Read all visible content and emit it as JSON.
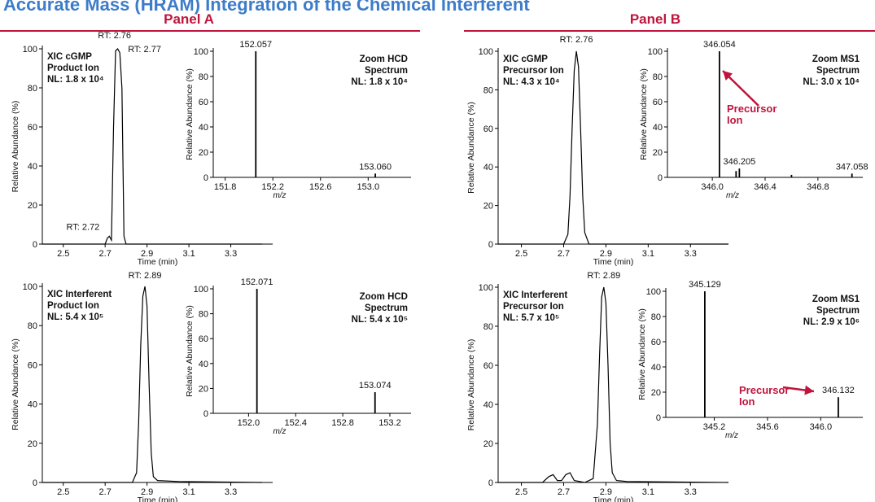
{
  "title": "Accurate Mass (HRAM) Integration of the Chemical Interferent",
  "panels": [
    "Panel A",
    "Panel B"
  ],
  "chart_data": [
    {
      "type": "line",
      "label": [
        "XIC cGMP",
        "Product Ion",
        "NL: 1.8 x 10⁴"
      ],
      "xlabel": "Time (min)",
      "ylabel": "Relative Abundance (%)",
      "x": [
        2.4,
        2.7,
        2.71,
        2.72,
        2.73,
        2.74,
        2.75,
        2.76,
        2.77,
        2.78,
        2.79,
        2.8,
        3.45
      ],
      "values": [
        0,
        0,
        3,
        4,
        2,
        60,
        99,
        100,
        98,
        80,
        4,
        0,
        0
      ],
      "annotations": [
        {
          "label": "RT: 2.76",
          "x": 2.76
        },
        {
          "label": "RT: 2.77",
          "x": 2.77
        },
        {
          "label": "RT: 2.72",
          "x": 2.72
        }
      ],
      "xlim": [
        2.4,
        3.5
      ],
      "ylim": [
        0,
        100
      ],
      "xticks": [
        2.5,
        2.7,
        2.9,
        3.1,
        3.3
      ],
      "yticks": [
        0,
        20,
        40,
        60,
        80,
        100
      ],
      "color": "#000000"
    },
    {
      "type": "stem",
      "label": [
        "Zoom HCD",
        "Spectrum",
        "NL: 1.8 x 10⁴"
      ],
      "xlabel": "m/z",
      "ylabel": "Relative Abundance (%)",
      "x": [
        152.057,
        153.06
      ],
      "values": [
        100,
        3
      ],
      "peak_labels": [
        "152.057",
        "153.060"
      ],
      "xlim": [
        151.7,
        153.36
      ],
      "ylim": [
        0,
        100
      ],
      "xticks": [
        151.8,
        152.2,
        152.6,
        {
          "value": 153,
          "label": "153.0"
        }
      ],
      "yticks": [
        0,
        20,
        40,
        60,
        80,
        100
      ],
      "color": "#000000"
    },
    {
      "type": "line",
      "label": [
        "XIC Interferent",
        "Product Ion",
        "NL: 5.4 x 10⁵"
      ],
      "xlabel": "Time (min)",
      "ylabel": "Relative Abundance (%)",
      "x": [
        2.4,
        2.83,
        2.85,
        2.86,
        2.87,
        2.88,
        2.89,
        2.9,
        2.91,
        2.92,
        2.93,
        2.95,
        3.05,
        3.45
      ],
      "values": [
        0,
        0,
        5,
        30,
        70,
        95,
        100,
        90,
        50,
        15,
        3,
        1,
        0.5,
        0
      ],
      "annotations": [
        {
          "label": "RT: 2.89",
          "x": 2.89
        }
      ],
      "xlim": [
        2.4,
        3.5
      ],
      "ylim": [
        0,
        100
      ],
      "xticks": [
        2.5,
        2.7,
        2.9,
        3.1,
        3.3
      ],
      "yticks": [
        0,
        20,
        40,
        60,
        80,
        100
      ],
      "color": "#000000"
    },
    {
      "type": "stem",
      "label": [
        "Zoom HCD",
        "Spectrum",
        "NL: 5.4 x 10⁵"
      ],
      "xlabel": "m/z",
      "ylabel": "Relative Abundance (%)",
      "x": [
        152.071,
        153.074
      ],
      "values": [
        100,
        17
      ],
      "peak_labels": [
        "152.071",
        "153.074"
      ],
      "xlim": [
        151.7,
        153.38
      ],
      "ylim": [
        0,
        100
      ],
      "xticks": [
        {
          "value": 152,
          "label": "152.0"
        },
        152.4,
        152.8,
        153.2
      ],
      "yticks": [
        0,
        20,
        40,
        60,
        80,
        100
      ],
      "color": "#000000"
    },
    {
      "type": "line",
      "label": [
        "XIC cGMP",
        "Precursor Ion",
        "NL: 4.3 x 10⁴"
      ],
      "xlabel": "Time (min)",
      "ylabel": "Relative Abundance (%)",
      "x": [
        2.39,
        2.7,
        2.72,
        2.73,
        2.74,
        2.75,
        2.76,
        2.77,
        2.78,
        2.79,
        2.8,
        2.82,
        3.48
      ],
      "values": [
        0,
        0,
        5,
        25,
        60,
        90,
        100,
        92,
        60,
        25,
        6,
        0,
        0
      ],
      "annotations": [
        {
          "label": "RT: 2.76",
          "x": 2.76
        }
      ],
      "xlim": [
        2.39,
        3.48
      ],
      "ylim": [
        0,
        100
      ],
      "xticks": [
        2.5,
        2.7,
        2.9,
        3.1,
        3.3
      ],
      "yticks": [
        0,
        20,
        40,
        60,
        80,
        100
      ],
      "color": "#000000"
    },
    {
      "type": "stem",
      "label": [
        "Zoom MS1",
        "Spectrum",
        "NL: 3.0 x 10⁴"
      ],
      "xlabel": "m/z",
      "ylabel": "Relative Abundance (%)",
      "x": [
        346.054,
        346.18,
        346.205,
        346.6,
        347.058
      ],
      "values": [
        100,
        5,
        7,
        2,
        3
      ],
      "peak_labels": [
        "346.054",
        null,
        "346.205",
        null,
        "347.058"
      ],
      "callout": "Precursor Ion",
      "xlim": [
        345.66,
        347.14
      ],
      "ylim": [
        0,
        100
      ],
      "xticks": [
        {
          "value": 346,
          "label": "346.0"
        },
        346.4,
        346.8
      ],
      "yticks": [
        0,
        20,
        40,
        60,
        80,
        100
      ],
      "color": "#000000"
    },
    {
      "type": "line",
      "label": [
        "XIC Interferent",
        "Precursor Ion",
        "NL: 5.7 x 10⁵"
      ],
      "xlabel": "Time (min)",
      "ylabel": "Relative Abundance (%)",
      "x": [
        2.39,
        2.6,
        2.63,
        2.65,
        2.67,
        2.69,
        2.71,
        2.73,
        2.75,
        2.8,
        2.84,
        2.86,
        2.87,
        2.88,
        2.89,
        2.9,
        2.91,
        2.92,
        2.93,
        2.95,
        3.0,
        3.48
      ],
      "values": [
        0,
        0,
        3,
        4,
        1,
        1,
        4,
        5,
        1,
        0,
        2,
        30,
        65,
        95,
        100,
        92,
        60,
        20,
        5,
        1,
        0.5,
        0
      ],
      "annotations": [
        {
          "label": "RT: 2.89",
          "x": 2.89
        }
      ],
      "xlim": [
        2.39,
        3.48
      ],
      "ylim": [
        0,
        100
      ],
      "xticks": [
        2.5,
        2.7,
        2.9,
        3.1,
        3.3
      ],
      "yticks": [
        0,
        20,
        40,
        60,
        80,
        100
      ],
      "color": "#000000"
    },
    {
      "type": "stem",
      "label": [
        "Zoom MS1",
        "Spectrum",
        "NL: 2.9 x 10⁶"
      ],
      "xlabel": "m/z",
      "ylabel": "Relative Abundance (%)",
      "x": [
        345.129,
        346.132
      ],
      "values": [
        100,
        16
      ],
      "peak_labels": [
        "345.129",
        "346.132"
      ],
      "callout": "Precursor Ion",
      "xlim": [
        344.836,
        346.316
      ],
      "ylim": [
        0,
        100
      ],
      "xticks": [
        345.2,
        345.6,
        {
          "value": 346,
          "label": "346.0"
        }
      ],
      "yticks": [
        0,
        20,
        40,
        60,
        80,
        100
      ],
      "color": "#000000"
    }
  ]
}
